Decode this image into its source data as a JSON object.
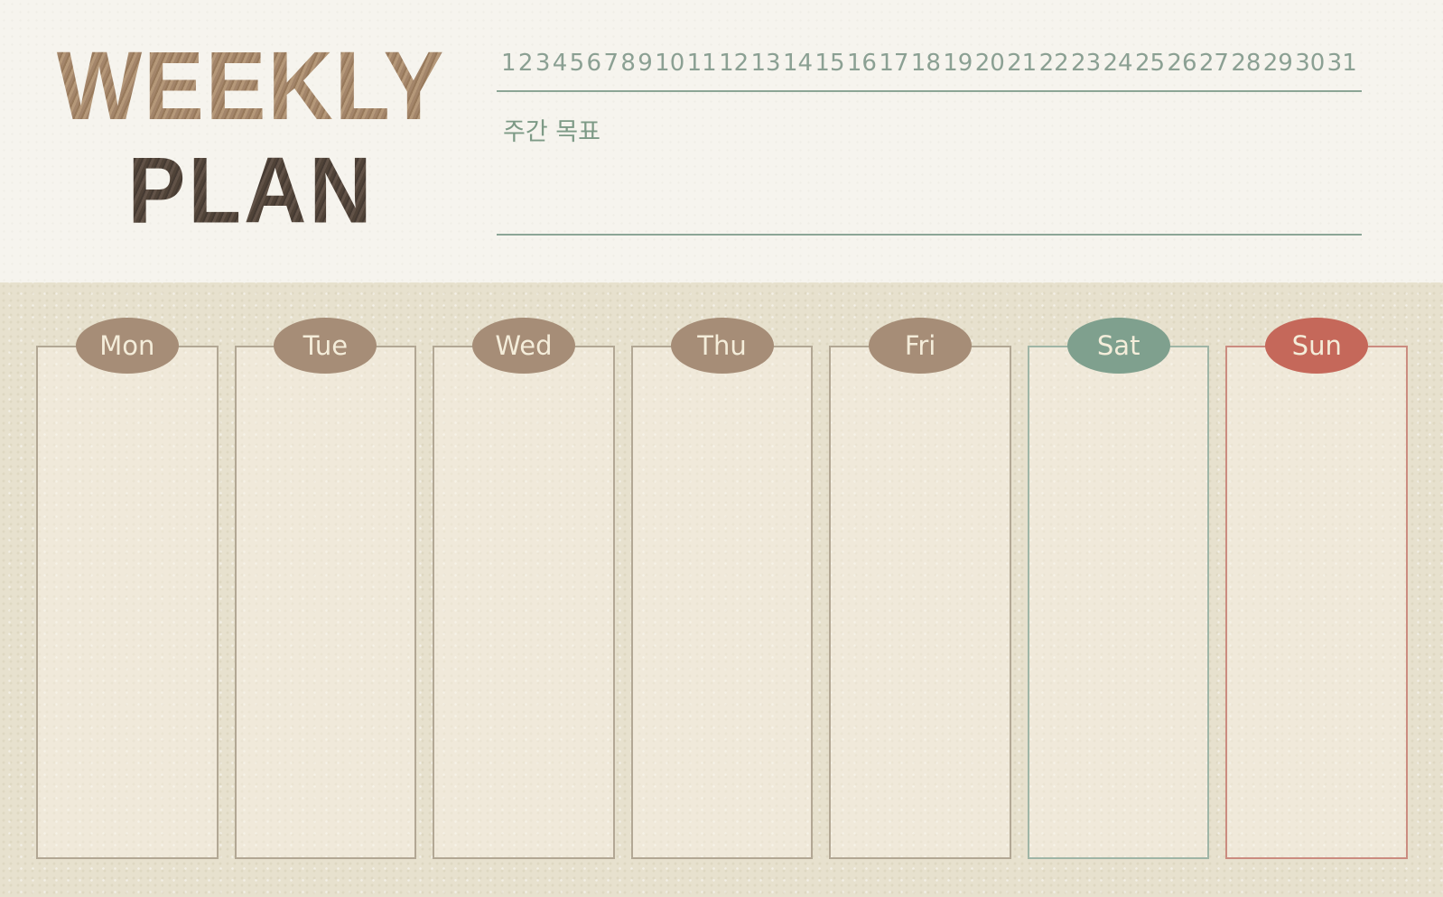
{
  "title": {
    "line1": "WEEKLY",
    "line2": "PLAN"
  },
  "date_tracker": {
    "dates": [
      "1",
      "2",
      "3",
      "4",
      "5",
      "6",
      "7",
      "8",
      "9",
      "10",
      "11",
      "12",
      "13",
      "14",
      "15",
      "16",
      "17",
      "18",
      "19",
      "20",
      "21",
      "22",
      "23",
      "24",
      "25",
      "26",
      "27",
      "28",
      "29",
      "30",
      "31"
    ],
    "goal_label": "주간 목표"
  },
  "week": {
    "days": [
      {
        "label": "Mon",
        "badge_color": "#a68d77",
        "border_color": "#b2a794",
        "label_color": "#f4edda"
      },
      {
        "label": "Tue",
        "badge_color": "#a68d77",
        "border_color": "#b2a794",
        "label_color": "#f4edda"
      },
      {
        "label": "Wed",
        "badge_color": "#a68d77",
        "border_color": "#b2a794",
        "label_color": "#f4edda"
      },
      {
        "label": "Thu",
        "badge_color": "#a68d77",
        "border_color": "#b2a794",
        "label_color": "#f4edda"
      },
      {
        "label": "Fri",
        "badge_color": "#a68d77",
        "border_color": "#b2a794",
        "label_color": "#f4edda"
      },
      {
        "label": "Sat",
        "badge_color": "#7fa08e",
        "border_color": "#9fb5a6",
        "label_color": "#f4edda"
      },
      {
        "label": "Sun",
        "badge_color": "#c5685a",
        "border_color": "#cb8c80",
        "label_color": "#f4edda"
      }
    ]
  },
  "colors": {
    "top_background": "#f6f4ee",
    "bottom_background": "#e7e1ce",
    "title_weekly": "#a98c70",
    "title_plan": "#53463d",
    "tracker_text": "#8ba093",
    "rule_line": "#8ca596",
    "goal_text": "#7d9a86"
  }
}
